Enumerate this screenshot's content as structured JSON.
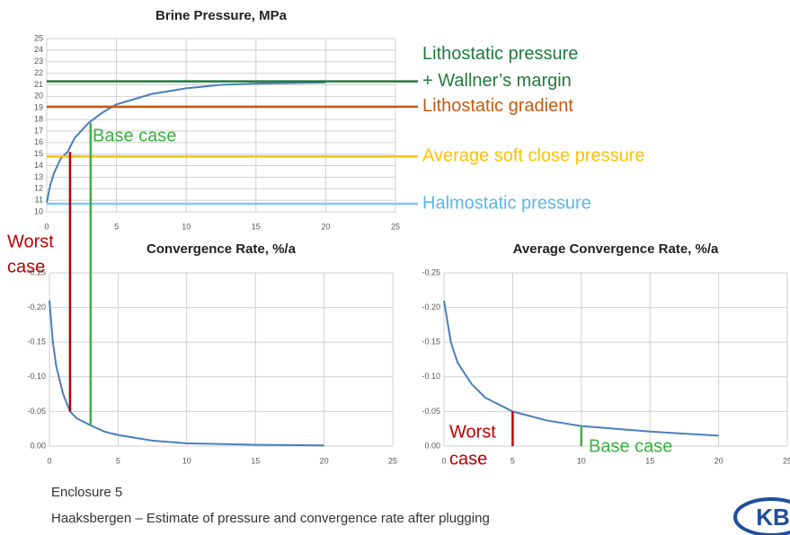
{
  "chart_data": [
    {
      "type": "line",
      "title": "Brine Pressure, MPa",
      "x": [
        0,
        0.25,
        0.5,
        1,
        1.5,
        2,
        3,
        4,
        5,
        7.5,
        10,
        12.5,
        15,
        20
      ],
      "series": [
        {
          "color": "#4a7ebb",
          "values": [
            10.8,
            12.3,
            13.3,
            14.6,
            15.2,
            16.4,
            17.7,
            18.6,
            19.3,
            20.2,
            20.7,
            21.0,
            21.1,
            21.2
          ]
        }
      ],
      "xlim": [
        0,
        25
      ],
      "xticks": [
        0,
        5,
        10,
        15,
        20,
        25
      ],
      "ylim": [
        10,
        25
      ],
      "yticks": [
        10,
        11,
        12,
        13,
        14,
        15,
        16,
        17,
        18,
        19,
        20,
        21,
        22,
        23,
        24,
        25
      ],
      "grid": true,
      "reference_lines": [
        {
          "value": 21.3,
          "color": "#1e7b3c",
          "label": [
            "Lithostatic pressure",
            "+ Wallner’s margin"
          ]
        },
        {
          "value": 19.1,
          "color": "#c55a11",
          "label": [
            "Lithostatic gradient"
          ]
        },
        {
          "value": 14.8,
          "color": "#ffc000",
          "label": [
            "Average soft close pressure"
          ]
        },
        {
          "value": 10.7,
          "color": "#7ec8f0",
          "label": [
            "Halmostatic pressure"
          ]
        }
      ]
    },
    {
      "type": "line",
      "title": "Convergence Rate, %/a",
      "x": [
        0,
        0.25,
        0.5,
        1,
        1.5,
        2,
        3,
        4,
        5,
        7.5,
        10,
        15,
        20
      ],
      "series": [
        {
          "color": "#4a7ebb",
          "values": [
            -0.21,
            -0.15,
            -0.115,
            -0.075,
            -0.05,
            -0.04,
            -0.03,
            -0.021,
            -0.016,
            -0.008,
            -0.004,
            -0.002,
            -0.001
          ]
        }
      ],
      "xlim": [
        0,
        25
      ],
      "xticks": [
        0,
        5,
        10,
        15,
        20,
        25
      ],
      "ylim": [
        0,
        -0.25
      ],
      "yticks": [
        {
          "value": -0.25,
          "label": "-0.25"
        },
        {
          "value": -0.2,
          "label": "-0.20"
        },
        {
          "value": -0.15,
          "label": "-0.15"
        },
        {
          "value": -0.1,
          "label": "-0.10"
        },
        {
          "value": -0.05,
          "label": "-0.05"
        },
        {
          "value": 0,
          "label": "0.00"
        }
      ],
      "grid": true,
      "cases": [
        {
          "label": [
            "Worst",
            "case"
          ],
          "color": "#c00000",
          "x": 1.5
        },
        {
          "label": [
            "Base case"
          ],
          "color": "#3cb043",
          "x": 3
        }
      ]
    },
    {
      "type": "line",
      "title": "Average Convergence Rate, %/a",
      "x": [
        0,
        0.25,
        0.5,
        1,
        2,
        3,
        5,
        7.5,
        10,
        15,
        20
      ],
      "series": [
        {
          "color": "#4a7ebb",
          "values": [
            -0.21,
            -0.18,
            -0.15,
            -0.12,
            -0.09,
            -0.07,
            -0.05,
            -0.037,
            -0.029,
            -0.021,
            -0.015
          ]
        }
      ],
      "xlim": [
        0,
        25
      ],
      "xticks": [
        0,
        5,
        10,
        15,
        20,
        25
      ],
      "ylim": [
        0,
        -0.25
      ],
      "yticks": [
        {
          "value": -0.25,
          "label": "-0.25"
        },
        {
          "value": -0.2,
          "label": "-0.20"
        },
        {
          "value": -0.15,
          "label": "-0.15"
        },
        {
          "value": -0.1,
          "label": "-0.10"
        },
        {
          "value": -0.05,
          "label": "-0.05"
        },
        {
          "value": 0,
          "label": "0.00"
        }
      ],
      "grid": true,
      "cases": [
        {
          "label": [
            "Worst",
            "case"
          ],
          "color": "#c00000",
          "x": 5
        },
        {
          "label": [
            "Base case"
          ],
          "color": "#3cb043",
          "x": 10
        }
      ]
    }
  ],
  "footer": {
    "enclosure": "Enclosure 5",
    "caption": "Haaksbergen – Estimate of pressure and convergence rate after plugging"
  },
  "logo": "KB"
}
